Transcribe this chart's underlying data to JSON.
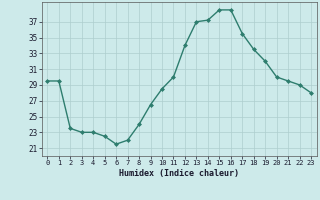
{
  "x": [
    0,
    1,
    2,
    3,
    4,
    5,
    6,
    7,
    8,
    9,
    10,
    11,
    12,
    13,
    14,
    15,
    16,
    17,
    18,
    19,
    20,
    21,
    22,
    23
  ],
  "y": [
    29.5,
    29.5,
    23.5,
    23.0,
    23.0,
    22.5,
    21.5,
    22.0,
    24.0,
    26.5,
    28.5,
    30.0,
    34.0,
    37.0,
    37.2,
    38.5,
    38.5,
    35.5,
    33.5,
    32.0,
    30.0,
    29.5,
    29.0,
    28.0
  ],
  "line_color": "#2e7d6e",
  "marker_color": "#2e7d6e",
  "bg_color": "#cdeaea",
  "grid_color": "#aecece",
  "xlabel": "Humidex (Indice chaleur)",
  "yticks": [
    21,
    23,
    25,
    27,
    29,
    31,
    33,
    35,
    37
  ],
  "xticks": [
    0,
    1,
    2,
    3,
    4,
    5,
    6,
    7,
    8,
    9,
    10,
    11,
    12,
    13,
    14,
    15,
    16,
    17,
    18,
    19,
    20,
    21,
    22,
    23
  ],
  "xlim": [
    -0.5,
    23.5
  ],
  "ylim": [
    20.0,
    39.5
  ]
}
